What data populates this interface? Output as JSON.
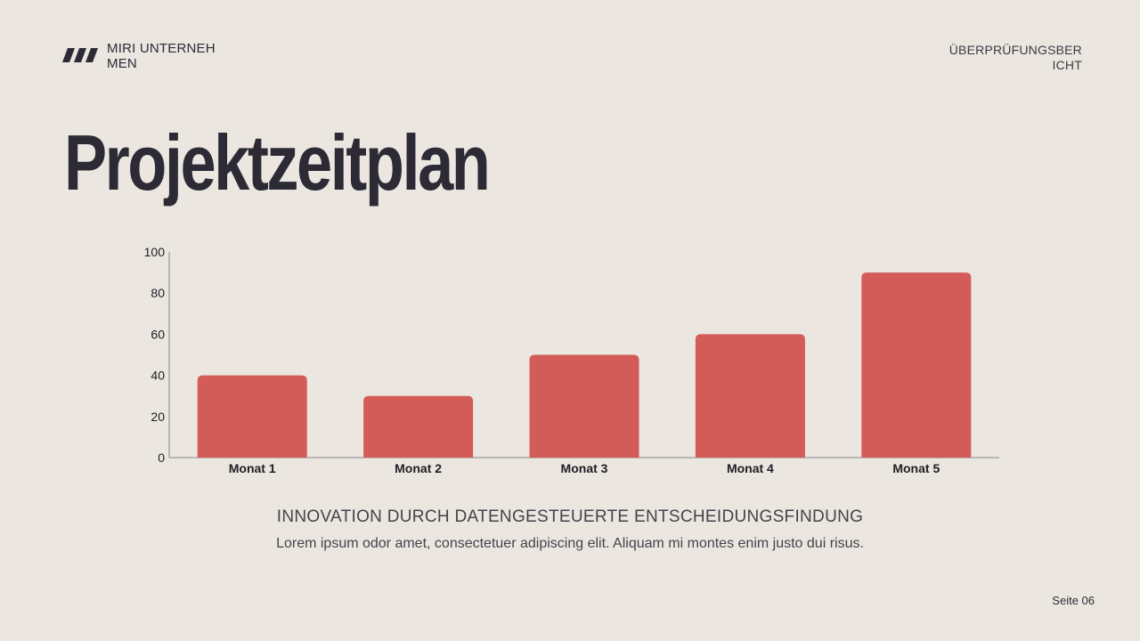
{
  "header": {
    "company": "MIRI UNTERNEHMEN",
    "report_label": "ÜBERPRÜFUNGSBERICHT",
    "logo_icon": "stripes-logo-icon"
  },
  "title": "Projektzeitplan",
  "chart_data": {
    "type": "bar",
    "categories": [
      "Monat 1",
      "Monat 2",
      "Monat 3",
      "Monat 4",
      "Monat 5"
    ],
    "values": [
      40,
      30,
      50,
      60,
      90
    ],
    "ylim": [
      0,
      100
    ],
    "yticks": [
      0,
      20,
      40,
      60,
      80,
      100
    ],
    "title": "",
    "xlabel": "",
    "ylabel": "",
    "grid": false,
    "bar_color": "#d35c58"
  },
  "footer": {
    "subheading": "INNOVATION DURCH DATENGESTEUERTE ENTSCHEIDUNGSFINDUNG",
    "body": "Lorem ipsum odor amet, consectetuer adipiscing elit. Aliquam mi montes enim justo dui risus.",
    "page": "Seite 06"
  }
}
